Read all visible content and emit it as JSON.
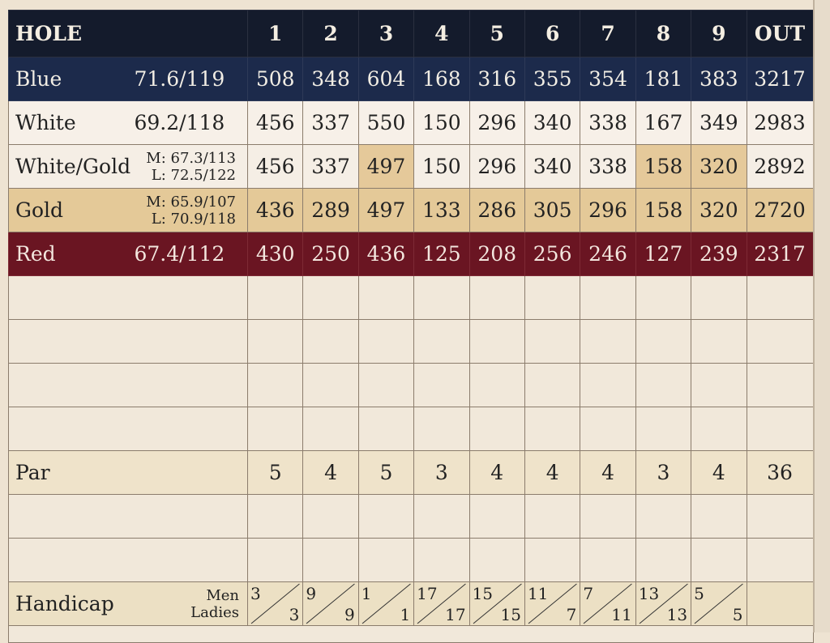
{
  "header": {
    "hole_label": "HOLE",
    "holes": [
      "1",
      "2",
      "3",
      "4",
      "5",
      "6",
      "7",
      "8",
      "9"
    ],
    "out_label": "OUT"
  },
  "tees": [
    {
      "name": "Blue",
      "rating": "71.6/119",
      "yards": [
        "508",
        "348",
        "604",
        "168",
        "316",
        "355",
        "354",
        "181",
        "383"
      ],
      "out": "3217"
    },
    {
      "name": "White",
      "rating": "69.2/118",
      "yards": [
        "456",
        "337",
        "550",
        "150",
        "296",
        "340",
        "338",
        "167",
        "349"
      ],
      "out": "2983"
    },
    {
      "name": "White/Gold",
      "rating_men": "M: 67.3/113",
      "rating_ladies": "L: 72.5/122",
      "yards": [
        "456",
        "337",
        "497",
        "150",
        "296",
        "340",
        "338",
        "158",
        "320"
      ],
      "out": "2892"
    },
    {
      "name": "Gold",
      "rating_men": "M: 65.9/107",
      "rating_ladies": "L: 70.9/118",
      "yards": [
        "436",
        "289",
        "497",
        "133",
        "286",
        "305",
        "296",
        "158",
        "320"
      ],
      "out": "2720"
    },
    {
      "name": "Red",
      "rating": "67.4/112",
      "yards": [
        "430",
        "250",
        "436",
        "125",
        "208",
        "256",
        "246",
        "127",
        "239"
      ],
      "out": "2317"
    }
  ],
  "par": {
    "label": "Par",
    "values": [
      "5",
      "4",
      "5",
      "3",
      "4",
      "4",
      "4",
      "3",
      "4"
    ],
    "out": "36"
  },
  "handicap": {
    "label": "Handicap",
    "men_label": "Men",
    "ladies_label": "Ladies",
    "men": [
      "3",
      "9",
      "1",
      "17",
      "15",
      "11",
      "7",
      "13",
      "5"
    ],
    "ladies": [
      "3",
      "9",
      "1",
      "17",
      "15",
      "7",
      "11",
      "13",
      "5"
    ]
  },
  "colors": {
    "header": "#141b2c",
    "blue": "#1c2a4b",
    "white": "#f7f0e8",
    "gold": "#e4c998",
    "red": "#6a1522",
    "paper": "#f1e8da"
  }
}
